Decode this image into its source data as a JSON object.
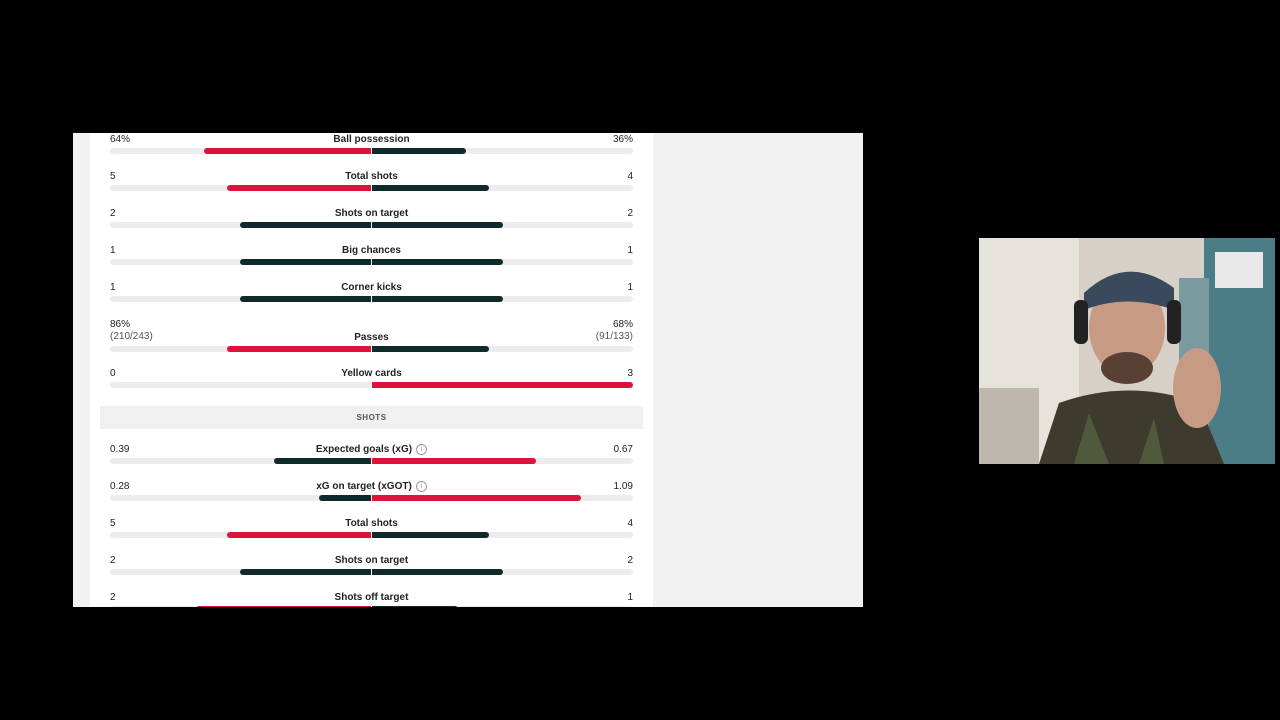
{
  "colors": {
    "home_bar": "#dc143c",
    "away_bar": "#102a2c",
    "track": "#ececec"
  },
  "overview": [
    {
      "label": "Ball possession",
      "home": "64%",
      "away": "36%",
      "home_frac": 0.64,
      "away_frac": 0.36,
      "home_color": "home_bar",
      "away_color": "away_bar"
    },
    {
      "label": "Total shots",
      "home": "5",
      "away": "4",
      "home_frac": 0.55,
      "away_frac": 0.45,
      "home_color": "home_bar",
      "away_color": "away_bar"
    },
    {
      "label": "Shots on target",
      "home": "2",
      "away": "2",
      "home_frac": 0.5,
      "away_frac": 0.5,
      "home_color": "away_bar",
      "away_color": "away_bar"
    },
    {
      "label": "Big chances",
      "home": "1",
      "away": "1",
      "home_frac": 0.5,
      "away_frac": 0.5,
      "home_color": "away_bar",
      "away_color": "away_bar"
    },
    {
      "label": "Corner kicks",
      "home": "1",
      "away": "1",
      "home_frac": 0.5,
      "away_frac": 0.5,
      "home_color": "away_bar",
      "away_color": "away_bar"
    },
    {
      "label": "Passes",
      "home": "86%",
      "away": "68%",
      "home_sub": "(210/243)",
      "away_sub": "(91/133)",
      "home_frac": 0.55,
      "away_frac": 0.45,
      "home_color": "home_bar",
      "away_color": "away_bar"
    },
    {
      "label": "Yellow cards",
      "home": "0",
      "away": "3",
      "home_frac": 0.0,
      "away_frac": 1.0,
      "home_color": "away_bar",
      "away_color": "home_bar"
    }
  ],
  "shots_section": {
    "title": "SHOTS",
    "rows": [
      {
        "label": "Expected goals (xG)",
        "info": true,
        "home": "0.39",
        "away": "0.67",
        "home_frac": 0.37,
        "away_frac": 0.63,
        "home_color": "away_bar",
        "away_color": "home_bar"
      },
      {
        "label": "xG on target (xGOT)",
        "info": true,
        "home": "0.28",
        "away": "1.09",
        "home_frac": 0.2,
        "away_frac": 0.8,
        "home_color": "away_bar",
        "away_color": "home_bar"
      },
      {
        "label": "Total shots",
        "home": "5",
        "away": "4",
        "home_frac": 0.55,
        "away_frac": 0.45,
        "home_color": "home_bar",
        "away_color": "away_bar"
      },
      {
        "label": "Shots on target",
        "home": "2",
        "away": "2",
        "home_frac": 0.5,
        "away_frac": 0.5,
        "home_color": "away_bar",
        "away_color": "away_bar"
      },
      {
        "label": "Shots off target",
        "home": "2",
        "away": "1",
        "home_frac": 0.67,
        "away_frac": 0.33,
        "home_color": "home_bar",
        "away_color": "away_bar"
      }
    ]
  },
  "info_glyph": "i"
}
